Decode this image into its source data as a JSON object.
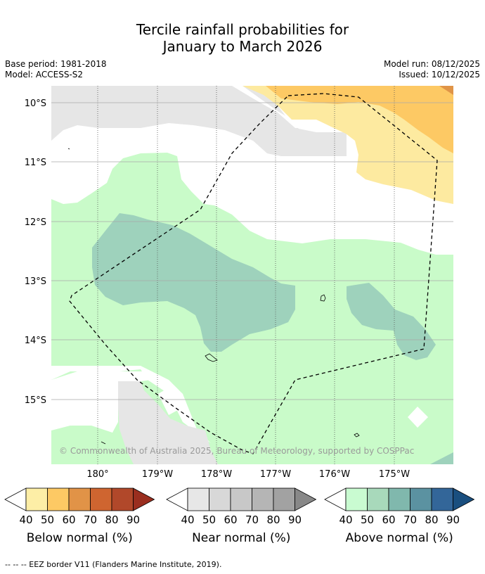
{
  "title": {
    "line1": "Tercile rainfall probabilities for",
    "line2": "January to March 2026"
  },
  "meta": {
    "base_period": "Base period: 1981-2018",
    "model": "Model: ACCESS-S2",
    "model_run": "Model run: 08/12/2025",
    "issued": "Issued: 10/12/2025"
  },
  "map": {
    "lat_labels": [
      "10°S",
      "11°S",
      "12°S",
      "13°S",
      "14°S",
      "15°S"
    ],
    "lon_labels": [
      "180°",
      "179°W",
      "178°W",
      "177°W",
      "176°W",
      "175°W"
    ],
    "copyright": "© Commonwealth of Australia 2025, Bureau of Meteorology, supported by COSPPac",
    "colors": {
      "below_40": "#fdeaa0",
      "below_50": "#fdc964",
      "below_60": "#e09447",
      "near_40": "#e6e6e6",
      "above_40": "#c9fbc9",
      "above_50": "#9ed2bc",
      "above_80": "#5f97a6"
    }
  },
  "legends": [
    {
      "name": "below",
      "title": "Below normal (%)",
      "ticks": [
        "40",
        "50",
        "60",
        "70",
        "80",
        "90"
      ],
      "colors": [
        "#fdeea6",
        "#fdc964",
        "#e19347",
        "#cf6530",
        "#b1482a",
        "#9a2e1f"
      ]
    },
    {
      "name": "near",
      "title": "Near normal (%)",
      "ticks": [
        "40",
        "50",
        "60",
        "70",
        "80",
        "90"
      ],
      "colors": [
        "#e7e7e7",
        "#d8d8d8",
        "#c8c8c8",
        "#b5b5b5",
        "#a2a2a2",
        "#888888"
      ]
    },
    {
      "name": "above",
      "title": "Above normal (%)",
      "ticks": [
        "40",
        "50",
        "60",
        "70",
        "80",
        "90"
      ],
      "colors": [
        "#c9fbd1",
        "#a8d9bb",
        "#80b8ad",
        "#5b92a1",
        "#336699",
        "#1a4f7f"
      ]
    }
  ],
  "footer": "--  --  -- EEZ border V11 (Flanders Marine Institute, 2019)."
}
